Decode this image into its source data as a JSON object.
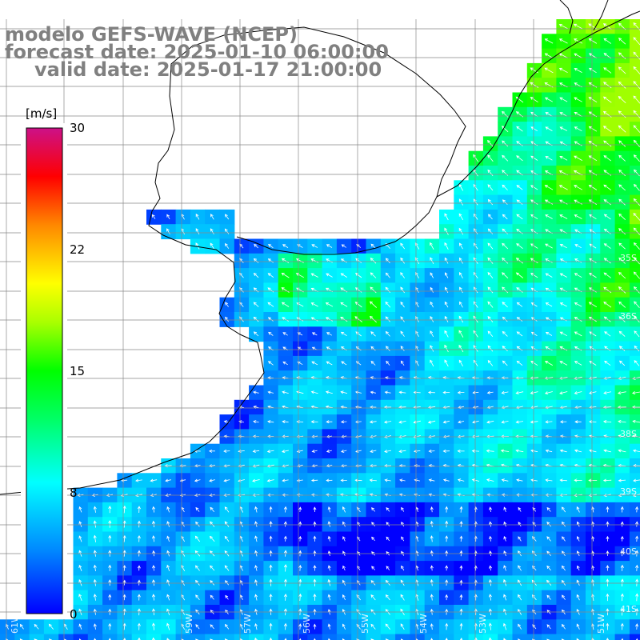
{
  "header": {
    "line1": "modelo GEFS-WAVE (NCEP)",
    "line2": "forecast date: 2025-01-10 06:00:00",
    "line3": "valid date: 2025-01-17 21:00:00"
  },
  "colorbar": {
    "unit": "[m/s]",
    "ticks": [
      "30",
      "22",
      "15",
      "8",
      "0"
    ],
    "tick_values": [
      30,
      22,
      15,
      8,
      0
    ],
    "min": 0,
    "max": 30,
    "colors": [
      "#0000ff",
      "#0088ff",
      "#00ffff",
      "#00ff00",
      "#ffff00",
      "#ff8800",
      "#ff0000",
      "#cc1166"
    ]
  },
  "axes": {
    "lon_labels": [
      "61W",
      "59W",
      "57W",
      "56W",
      "55W",
      "54W",
      "53W",
      "51W"
    ],
    "lat_labels": [
      "35S",
      "36S",
      "38S",
      "39S",
      "40S",
      "41S"
    ]
  }
}
